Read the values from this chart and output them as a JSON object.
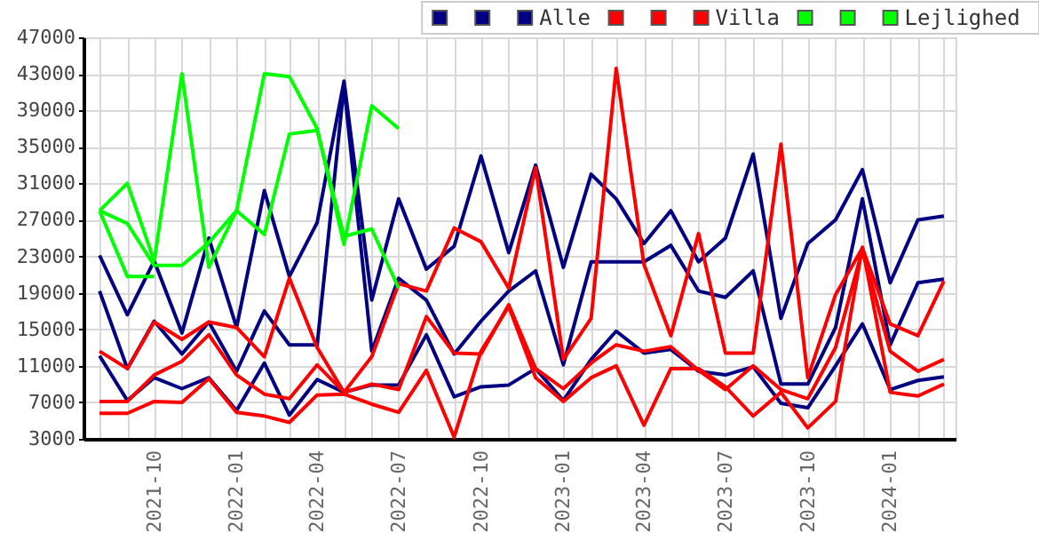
{
  "chart_data": {
    "type": "line",
    "x": [
      "2021-08",
      "2021-09",
      "2021-10",
      "2021-11",
      "2021-12",
      "2022-01",
      "2022-02",
      "2022-03",
      "2022-04",
      "2022-05",
      "2022-06",
      "2022-07",
      "2022-08",
      "2022-09",
      "2022-10",
      "2022-11",
      "2022-12",
      "2023-01",
      "2023-02",
      "2023-03",
      "2023-04",
      "2023-05",
      "2023-06",
      "2023-07",
      "2023-08",
      "2023-09",
      "2023-10",
      "2023-11",
      "2023-12",
      "2024-01",
      "2024-02",
      "2024-03"
    ],
    "series": [
      {
        "color": "#000080",
        "values": [
          23100,
          16600,
          22500,
          14600,
          25000,
          15200,
          30200,
          20800,
          26700,
          42200,
          18200,
          29300,
          21600,
          24100,
          34000,
          23400,
          33000,
          21800,
          32000,
          29300,
          24400,
          28000,
          22400,
          25000,
          34200,
          16200,
          24400,
          27000,
          32500,
          20100,
          27000,
          27400
        ]
      },
      {
        "color": "#000080",
        "values": [
          19200,
          10700,
          15900,
          12300,
          15800,
          10400,
          17000,
          13300,
          13300,
          41700,
          12600,
          20600,
          18200,
          12300,
          15900,
          19200,
          21400,
          11100,
          22400,
          22400,
          22400,
          24200,
          19200,
          18500,
          21400,
          9000,
          9000,
          15200,
          29300,
          13300,
          20100,
          20500
        ]
      },
      {
        "name": "Alle",
        "color": "#000080",
        "values": [
          12100,
          7200,
          9700,
          8500,
          9700,
          6100,
          11300,
          5600,
          9500,
          8100,
          8900,
          8900,
          14400,
          7600,
          8700,
          8900,
          10700,
          7200,
          11700,
          14800,
          12400,
          12800,
          10400,
          10000,
          10900,
          6900,
          6400,
          11000,
          15600,
          8400,
          9400,
          9800
        ]
      },
      {
        "color": "#ff0000",
        "values": [
          12600,
          10700,
          15800,
          13900,
          15800,
          15200,
          12000,
          20600,
          13000,
          8100,
          12000,
          20000,
          19200,
          26100,
          24600,
          19500,
          32700,
          11700,
          16200,
          43600,
          22100,
          14300,
          25500,
          12400,
          12400,
          35300,
          9700,
          18800,
          23900,
          15600,
          14300,
          20300
        ]
      },
      {
        "color": "#ff0000",
        "values": [
          7100,
          7100,
          10000,
          11500,
          14400,
          10000,
          7900,
          7400,
          11100,
          8100,
          9000,
          8400,
          16400,
          12400,
          12300,
          17700,
          10700,
          8500,
          11300,
          13300,
          12600,
          13100,
          10500,
          8400,
          11000,
          8400,
          7400,
          13000,
          23700,
          12600,
          10400,
          11700
        ]
      },
      {
        "name": "Villa",
        "color": "#ff0000",
        "values": [
          5800,
          5800,
          7100,
          7000,
          9600,
          5900,
          5500,
          4800,
          7800,
          7900,
          6800,
          5900,
          10500,
          3200,
          12600,
          17500,
          9700,
          7100,
          9700,
          11000,
          4500,
          10700,
          10700,
          8700,
          5500,
          8100,
          4200,
          7100,
          24000,
          8100,
          7700,
          9000
        ]
      },
      {
        "color": "#00ff00",
        "x": [
          "2021-08",
          "2021-09",
          "2021-10",
          "2021-11",
          "2021-12",
          "2022-01",
          "2022-02",
          "2022-03",
          "2022-04",
          "2022-05",
          "2022-06",
          "2022-07"
        ],
        "values": [
          28000,
          31000,
          22500,
          43000,
          21800,
          28000,
          43000,
          42700,
          37000,
          24300,
          39500,
          37000
        ]
      },
      {
        "color": "#00ff00",
        "x": [
          "2021-08",
          "2021-09",
          "2021-10",
          "2021-11",
          "2021-12",
          "2022-01",
          "2022-02",
          "2022-03",
          "2022-04",
          "2022-05",
          "2022-06",
          "2022-07"
        ],
        "values": [
          28000,
          26600,
          22000,
          22000,
          24500,
          28000,
          25400,
          36400,
          36800,
          25200,
          26000,
          19500
        ]
      },
      {
        "name": "Lejlighed",
        "color": "#00ff00",
        "x": [
          "2021-08",
          "2021-09",
          "2021-10"
        ],
        "values": [
          28000,
          20800,
          20800
        ]
      }
    ],
    "xlim": [
      "2021-07-14",
      "2024-03-14"
    ],
    "xticks": [
      {
        "value": "2021-08",
        "label": null
      },
      {
        "value": "2021-09",
        "label": null
      },
      "2021-10",
      {
        "value": "2021-11",
        "label": null
      },
      {
        "value": "2021-12",
        "label": null
      },
      "2022-01",
      {
        "value": "2022-02",
        "label": null
      },
      {
        "value": "2022-03",
        "label": null
      },
      "2022-04",
      {
        "value": "2022-05",
        "label": null
      },
      {
        "value": "2022-06",
        "label": null
      },
      "2022-07",
      {
        "value": "2022-08",
        "label": null
      },
      {
        "value": "2022-09",
        "label": null
      },
      "2022-10",
      {
        "value": "2022-11",
        "label": null
      },
      {
        "value": "2022-12",
        "label": null
      },
      "2023-01",
      {
        "value": "2023-02",
        "label": null
      },
      {
        "value": "2023-03",
        "label": null
      },
      "2023-04",
      {
        "value": "2023-05",
        "label": null
      },
      {
        "value": "2023-06",
        "label": null
      },
      "2023-07",
      {
        "value": "2023-08",
        "label": null
      },
      {
        "value": "2023-09",
        "label": null
      },
      "2023-10",
      {
        "value": "2023-11",
        "label": null
      },
      {
        "value": "2023-12",
        "label": null
      },
      "2024-01",
      {
        "value": "2024-02",
        "label": null
      },
      {
        "value": "2024-03",
        "label": null
      }
    ],
    "ylim": [
      3000,
      47000
    ],
    "yticks": [
      3000,
      7000,
      11000,
      15000,
      19000,
      23000,
      27000,
      31000,
      35000,
      39000,
      43000,
      47000
    ],
    "grid": true,
    "legend": "top right",
    "marker": "none",
    "line_style": "solid"
  }
}
